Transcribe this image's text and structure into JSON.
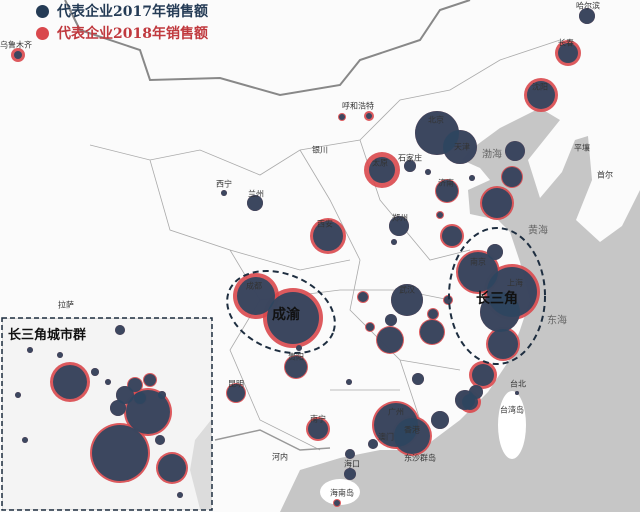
{
  "legend": [
    {
      "label": "代表企业2017年销售额",
      "color": "#243b55"
    },
    {
      "label": "代表企业2018年销售额",
      "color": "#d9484d"
    }
  ],
  "colors": {
    "bubble_2017": "#2e4560",
    "bubble_2018": "#d9484d",
    "sea": "#c6c6c6",
    "land": "#ffffff"
  },
  "clusters": {
    "chengyu": "成渝",
    "yangtze": "长三角",
    "inset_title": "长三角城市群"
  },
  "seas": [
    "渤海",
    "黄海",
    "东海"
  ],
  "cities": [
    "乌鲁木齐",
    "哈尔滨",
    "长春",
    "沈阳",
    "北京",
    "天津",
    "石家庄",
    "太原",
    "呼和浩特",
    "银川",
    "西宁",
    "兰州",
    "济南",
    "郑州",
    "西安",
    "成都",
    "武汉",
    "南京",
    "上海",
    "贵阳",
    "昆明",
    "南宁",
    "广州",
    "香港",
    "澳门",
    "海口",
    "海南岛",
    "台北",
    "台湾岛",
    "平壤",
    "首尔",
    "拉萨",
    "河内",
    "东沙群岛"
  ]
}
